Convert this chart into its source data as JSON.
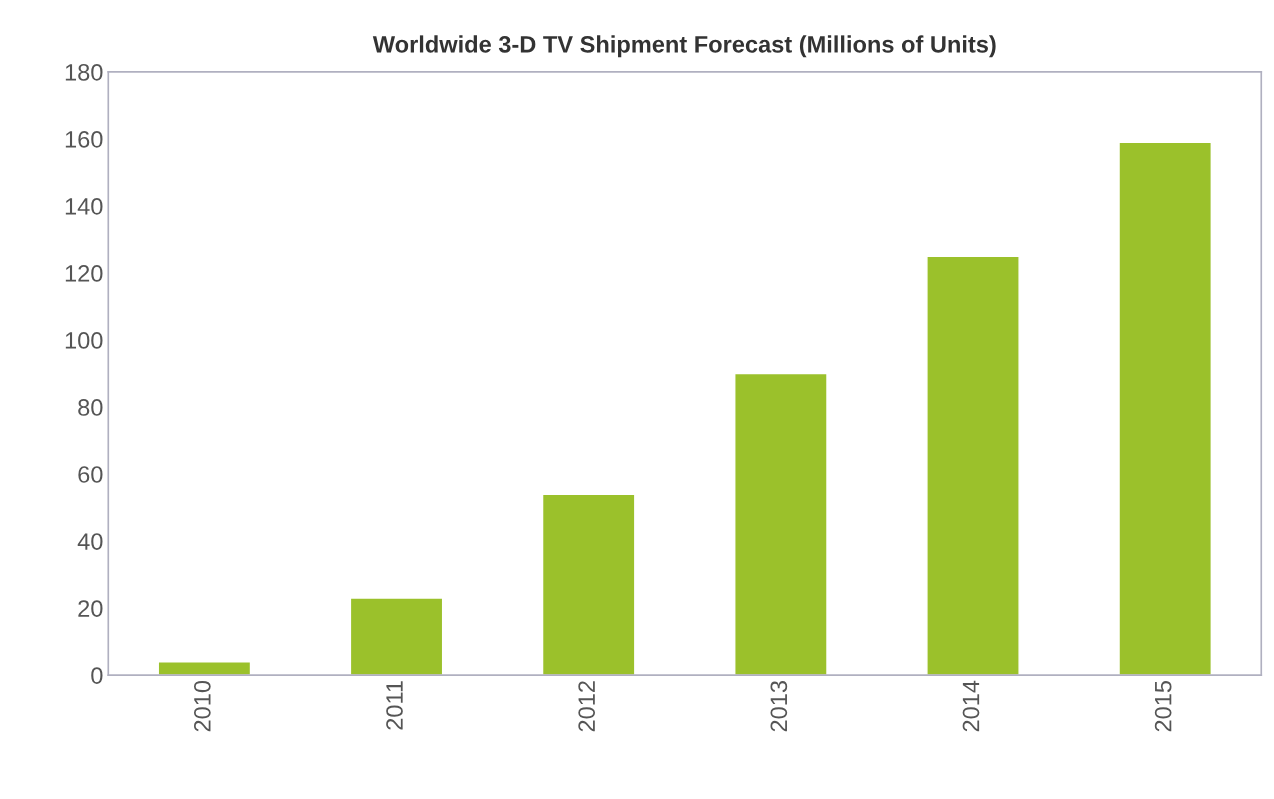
{
  "chart_data": {
    "type": "bar",
    "title": "Worldwide 3-D TV Shipment Forecast (Millions of Units)",
    "categories": [
      "2010",
      "2011",
      "2012",
      "2013",
      "2014",
      "2015"
    ],
    "values": [
      4,
      23,
      54,
      90,
      125,
      159
    ],
    "color": "#9bc12b",
    "ylim": [
      0,
      180
    ],
    "yticks": [
      0,
      20,
      40,
      60,
      80,
      100,
      120,
      140,
      160,
      180
    ],
    "grid": false
  }
}
